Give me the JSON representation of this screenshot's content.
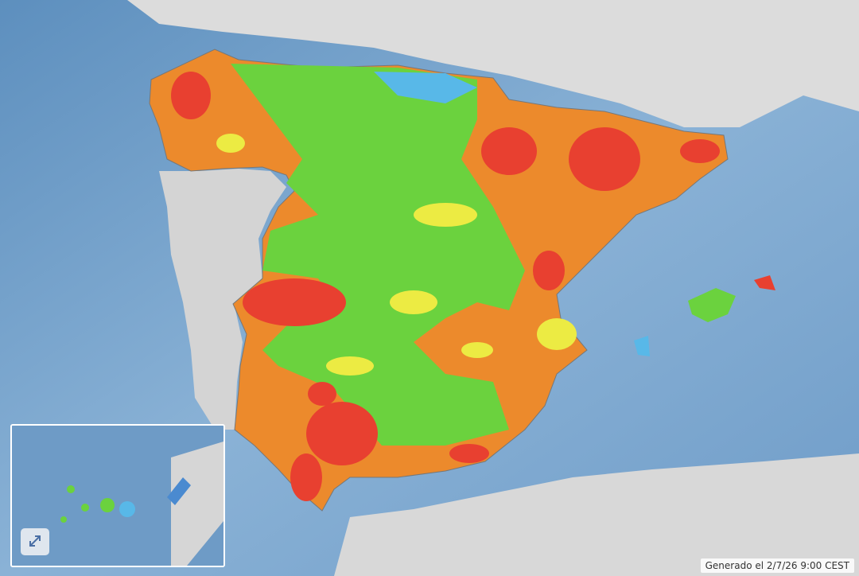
{
  "footer": {
    "timestamp": "Generado el 2/7/26 9:00 CEST"
  }
}
